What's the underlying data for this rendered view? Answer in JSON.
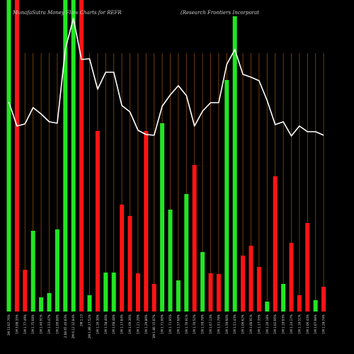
{
  "chart_data": {
    "type": "bar",
    "title_left": "MunafaSutra  Money Flow  Charts for REFR",
    "title_right": "(Research Frontiers Incorporat",
    "colors": {
      "background": "#000000",
      "up": "#22e622",
      "down": "#ff1414",
      "line": "#ffffff",
      "grid": "#8b4a0a"
    },
    "series": [
      {
        "values": [
          440,
          440,
          59,
          114,
          20,
          26,
          116,
          440,
          440,
          440,
          23,
          255,
          55,
          55,
          151,
          135,
          54,
          255,
          39,
          266,
          144,
          44,
          166,
          207,
          84,
          54,
          53,
          327,
          417,
          79,
          93,
          63,
          14,
          191,
          39,
          97,
          23,
          125,
          16,
          35
        ],
        "colors": [
          "up",
          "down",
          "down",
          "up",
          "up",
          "up",
          "up",
          "up",
          "up",
          "down",
          "up",
          "down",
          "up",
          "up",
          "down",
          "down",
          "down",
          "down",
          "down",
          "up",
          "up",
          "up",
          "up",
          "down",
          "up",
          "down",
          "down",
          "up",
          "up",
          "down",
          "down",
          "down",
          "up",
          "down",
          "up",
          "down",
          "down",
          "down",
          "up",
          "down"
        ]
      },
      {
        "type": "line",
        "values": [
          296,
          262,
          265,
          288,
          279,
          268,
          266,
          371,
          414,
          356,
          357,
          314,
          338,
          338,
          291,
          282,
          256,
          250,
          249,
          290,
          306,
          319,
          305,
          262,
          283,
          295,
          295,
          349,
          370,
          335,
          331,
          326,
          298,
          264,
          268,
          248,
          262,
          254,
          254,
          249
        ]
      }
    ],
    "categories": [
      "1M 13.07.76%",
      "1M 3.08.35%",
      "1M 1.77.49%",
      "1M 1.75.68%",
      "1M 1.40.91%",
      "1M 1.53.47%",
      "1M 2.09.08%",
      "2.08.65 46.83%",
      "2M 0.12 32.84%",
      "2M 1.13",
      "2M 1.89 27.52%",
      "1M 1.26.30%",
      "1M 1.58.40%",
      "1M 1.68.48%",
      "1M 1.17.84%",
      "1M 1.69.36%",
      "1M 1.21.20%",
      "1M 1.29.80%",
      "1M 1.80 15.07%",
      "1M 1.71.60%",
      "1M 1.71.95%",
      "1M 1.57.68%",
      "1M 1.70.91%",
      "1M 1.70.52%",
      "1M 1.59.78%",
      "1M 1.67.13%",
      "1M 1.51.78%",
      "1M 1.59.60%",
      "1M 1.51.43%",
      "1M 1.06.62%",
      "1M 1.08.91%",
      "1M 1.17.35%",
      "1M 1.20.18%",
      "1M 1.02.66%",
      "1M 1.18.93%",
      "1M 1.24.17%",
      "1M 1.10.51%",
      "1M 1.06.43%",
      "1M 1.07.98%",
      "1M 1.28.74%"
    ]
  }
}
